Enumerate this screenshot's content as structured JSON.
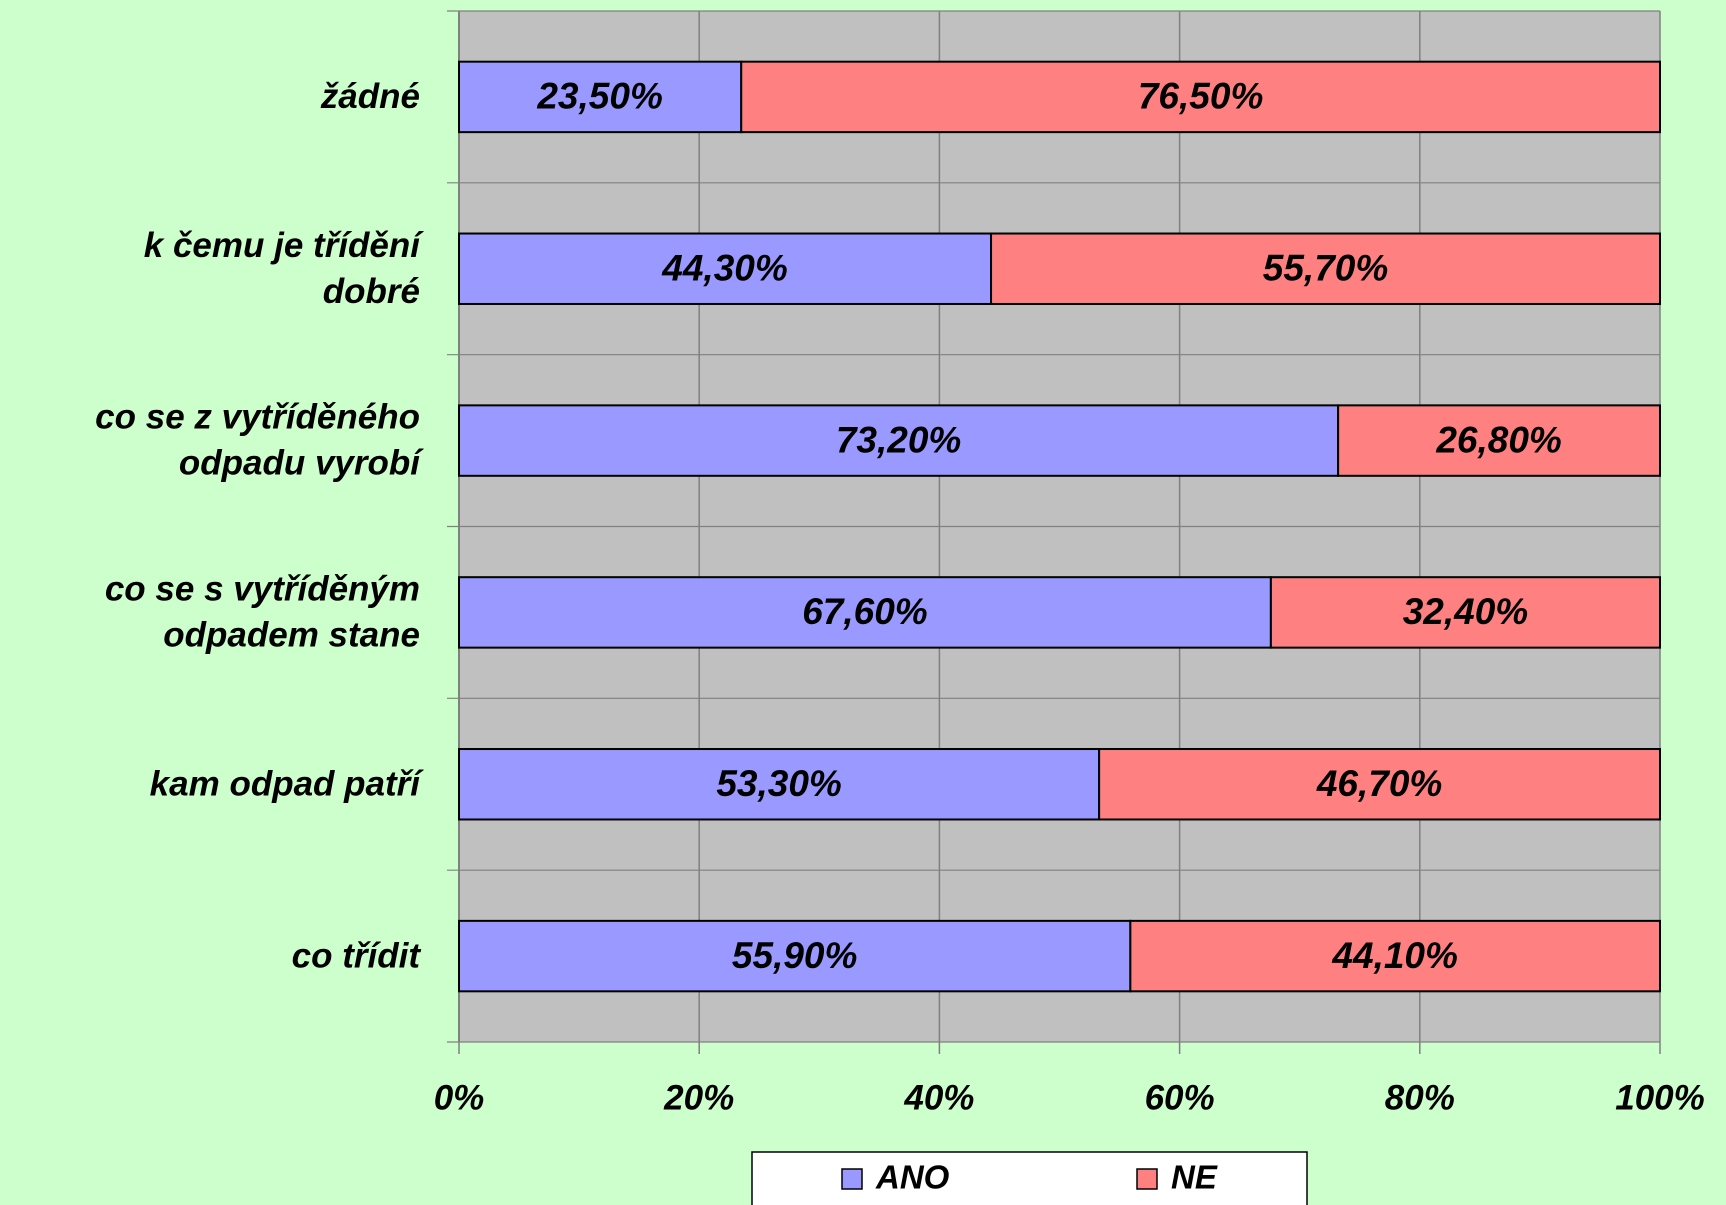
{
  "chart_data": {
    "type": "stacked_barh",
    "categories": [
      "žádné",
      "k čemu je třídění\ndobré",
      "co se z vytříděného\nodpadu vyrobí",
      "co se s vytříděným\nodpadem stane",
      "kam odpad patří",
      "co třídit"
    ],
    "series": [
      {
        "name": "ANO",
        "color": "#9999ff",
        "values": [
          23.5,
          44.3,
          73.2,
          67.6,
          53.3,
          55.9
        ],
        "value_labels": [
          "23,50%",
          "44,30%",
          "73,20%",
          "67,60%",
          "53,30%",
          "55,90%"
        ]
      },
      {
        "name": "NE",
        "color": "#ff8080",
        "values": [
          76.5,
          55.7,
          26.8,
          32.4,
          46.7,
          44.1
        ],
        "value_labels": [
          "76,50%",
          "55,70%",
          "26,80%",
          "32,40%",
          "46,70%",
          "44,10%"
        ]
      }
    ],
    "xlim": [
      0,
      100
    ],
    "xticks": [
      {
        "value": 0,
        "label": "0%"
      },
      {
        "value": 20,
        "label": "20%"
      },
      {
        "value": 40,
        "label": "40%"
      },
      {
        "value": 60,
        "label": "60%"
      },
      {
        "value": 80,
        "label": "80%"
      },
      {
        "value": 100,
        "label": "100%"
      }
    ],
    "grid": true,
    "legend": "bottom"
  }
}
